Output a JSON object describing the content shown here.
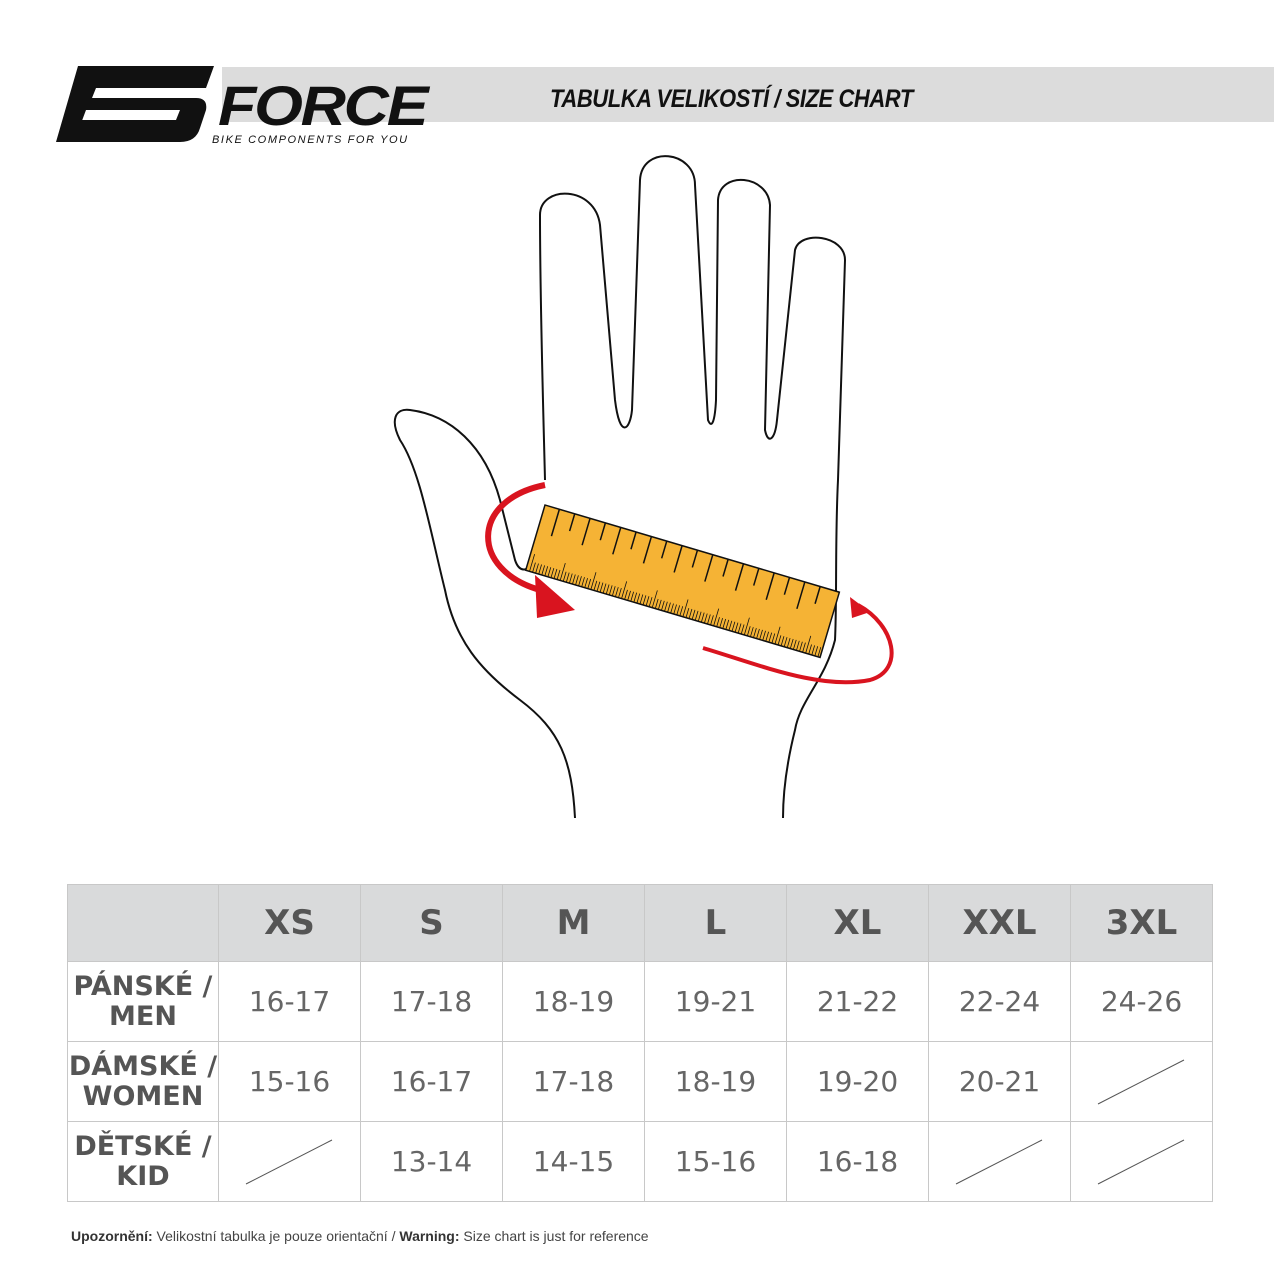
{
  "header": {
    "brand": "FORCE",
    "tagline": "BIKE COMPONENTS FOR YOU",
    "title": "TABULKA VELIKOSTÍ / SIZE CHART"
  },
  "colors": {
    "ruler": "#f5b335",
    "arrow": "#d9141f",
    "header_bg": "#d9dadb"
  },
  "table": {
    "columns": [
      "XS",
      "S",
      "M",
      "L",
      "XL",
      "XXL",
      "3XL"
    ],
    "rows": [
      {
        "label": "PÁNSKÉ /",
        "label2": "MEN",
        "values": [
          "16-17",
          "17-18",
          "18-19",
          "19-21",
          "21-22",
          "22-24",
          "24-26"
        ]
      },
      {
        "label": "DÁMSKÉ /",
        "label2": "WOMEN",
        "values": [
          "15-16",
          "16-17",
          "17-18",
          "18-19",
          "19-20",
          "20-21",
          null
        ]
      },
      {
        "label": "DĚTSKÉ /",
        "label2": "KID",
        "values": [
          null,
          "13-14",
          "14-15",
          "15-16",
          "16-18",
          null,
          null
        ]
      }
    ]
  },
  "note": {
    "cz_label": "Upozornění:",
    "cz_text": " Velikostní tabulka je pouze orientační / ",
    "en_label": "Warning:",
    "en_text": " Size chart is just for reference"
  }
}
